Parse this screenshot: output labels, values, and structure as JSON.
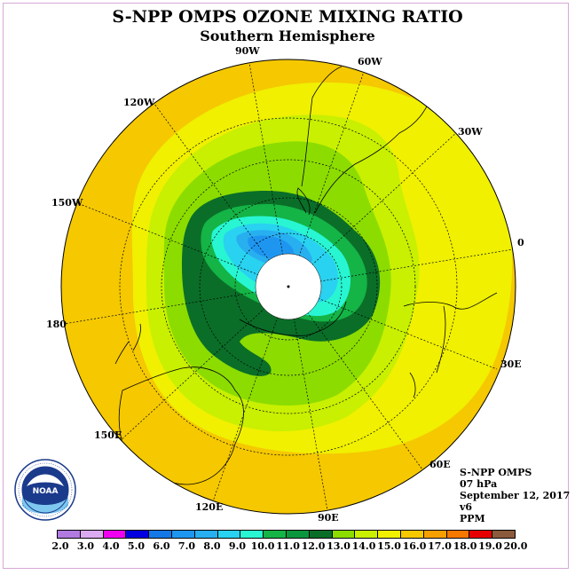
{
  "title": "S-NPP OMPS OZONE MIXING RATIO",
  "subtitle": "Southern Hemisphere",
  "longitude_labels": [
    {
      "label": "90W"
    },
    {
      "label": "60W"
    },
    {
      "label": "120W"
    },
    {
      "label": "30W"
    },
    {
      "label": "150W"
    },
    {
      "label": "0"
    },
    {
      "label": "180"
    },
    {
      "label": "30E"
    },
    {
      "label": "150E"
    },
    {
      "label": "60E"
    },
    {
      "label": "120E"
    },
    {
      "label": "90E"
    }
  ],
  "info": {
    "instrument": "S-NPP OMPS",
    "level": "07 hPa",
    "date": "September 12, 2017",
    "version": "v6",
    "units": "PPM"
  },
  "logo": {
    "text": "NOAA",
    "ring_text": "NATIONAL OCEANIC AND ATMOSPHERIC ADMINISTRATION U.S. DEPARTMENT OF COMMERCE"
  },
  "colorbar": {
    "ticks": [
      "2.0",
      "3.0",
      "4.0",
      "5.0",
      "6.0",
      "7.0",
      "8.0",
      "9.0",
      "10.0",
      "11.0",
      "12.0",
      "13.0",
      "14.0",
      "15.0",
      "16.0",
      "17.0",
      "18.0",
      "19.0",
      "20.0"
    ],
    "colors": [
      "#b07ae0",
      "#dcaaf0",
      "#f000f0",
      "#0000e0",
      "#1478e6",
      "#1e96f0",
      "#28aff0",
      "#28d2f0",
      "#28f5d2",
      "#14b446",
      "#0a963c",
      "#0a6e28",
      "#8cdc00",
      "#c8f000",
      "#f0f000",
      "#f5c800",
      "#f5a000",
      "#f57800",
      "#e60000",
      "#8c5a3c"
    ]
  }
}
